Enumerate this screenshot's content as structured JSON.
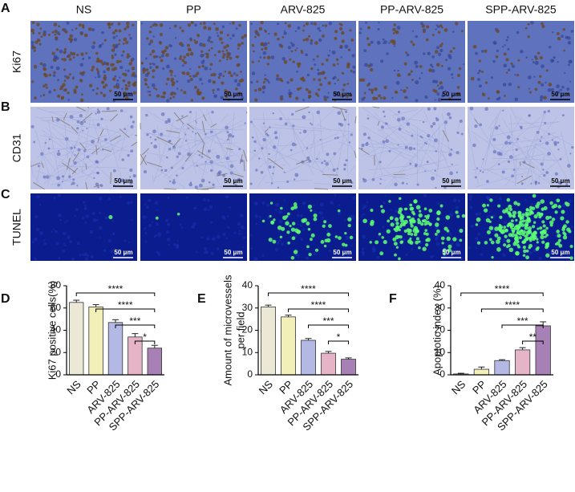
{
  "panels": {
    "columns": [
      "NS",
      "PP",
      "ARV-825",
      "PP-ARV-825",
      "SPP-ARV-825"
    ],
    "rows": [
      {
        "letter": "A",
        "label": "Ki67"
      },
      {
        "letter": "B",
        "label": "CD31"
      },
      {
        "letter": "C",
        "label": "TUNEL"
      }
    ],
    "scale_bar": "50 μm"
  },
  "chart_data": [
    {
      "type": "bar",
      "panel": "D",
      "ylabel": "Ki67 positive cells(%)",
      "categories": [
        "NS",
        "PP",
        "ARV-825",
        "PP-ARV-825",
        "SPP-ARV-825"
      ],
      "values": [
        65,
        61,
        47,
        34,
        24
      ],
      "errors": [
        2,
        2,
        2.5,
        3,
        2.5
      ],
      "colors": [
        "#ebe8d5",
        "#f3efb8",
        "#b4b8e4",
        "#e6b4c7",
        "#a780b6"
      ],
      "ylim": [
        0,
        80
      ],
      "yticks": [
        0,
        20,
        40,
        60,
        80
      ],
      "comparisons": [
        {
          "groups": [
            "NS",
            "SPP-ARV-825"
          ],
          "label": "****"
        },
        {
          "groups": [
            "PP",
            "SPP-ARV-825"
          ],
          "label": "****"
        },
        {
          "groups": [
            "ARV-825",
            "SPP-ARV-825"
          ],
          "label": "***"
        },
        {
          "groups": [
            "PP-ARV-825",
            "SPP-ARV-825"
          ],
          "label": "*"
        }
      ]
    },
    {
      "type": "bar",
      "panel": "E",
      "ylabel": [
        "Amount of microvessels",
        "per field"
      ],
      "categories": [
        "NS",
        "PP",
        "ARV-825",
        "PP-ARV-825",
        "SPP-ARV-825"
      ],
      "values": [
        30.5,
        26,
        15.5,
        9.7,
        7
      ],
      "errors": [
        0.8,
        0.8,
        0.8,
        0.8,
        0.6
      ],
      "colors": [
        "#ebe8d5",
        "#f3efb8",
        "#b4b8e4",
        "#e6b4c7",
        "#a780b6"
      ],
      "ylim": [
        0,
        40
      ],
      "yticks": [
        0,
        10,
        20,
        30,
        40
      ],
      "comparisons": [
        {
          "groups": [
            "NS",
            "SPP-ARV-825"
          ],
          "label": "****"
        },
        {
          "groups": [
            "PP",
            "SPP-ARV-825"
          ],
          "label": "****"
        },
        {
          "groups": [
            "ARV-825",
            "SPP-ARV-825"
          ],
          "label": "***"
        },
        {
          "groups": [
            "PP-ARV-825",
            "SPP-ARV-825"
          ],
          "label": "*"
        }
      ]
    },
    {
      "type": "bar",
      "panel": "F",
      "ylabel": "Apoptotic index (%)",
      "categories": [
        "NS",
        "PP",
        "ARV-825",
        "PP-ARV-825",
        "SPP-ARV-825"
      ],
      "values": [
        0.4,
        2.5,
        6.4,
        11.2,
        22
      ],
      "errors": [
        0.3,
        1,
        0.4,
        1,
        1.8
      ],
      "colors": [
        "#ebe8d5",
        "#f3efb8",
        "#b4b8e4",
        "#e6b4c7",
        "#a780b6"
      ],
      "ylim": [
        0,
        40
      ],
      "yticks": [
        0,
        10,
        20,
        30,
        40
      ],
      "comparisons": [
        {
          "groups": [
            "NS",
            "SPP-ARV-825"
          ],
          "label": "****"
        },
        {
          "groups": [
            "PP",
            "SPP-ARV-825"
          ],
          "label": "****"
        },
        {
          "groups": [
            "ARV-825",
            "SPP-ARV-825"
          ],
          "label": "***"
        },
        {
          "groups": [
            "PP-ARV-825",
            "SPP-ARV-825"
          ],
          "label": "**"
        }
      ]
    }
  ]
}
